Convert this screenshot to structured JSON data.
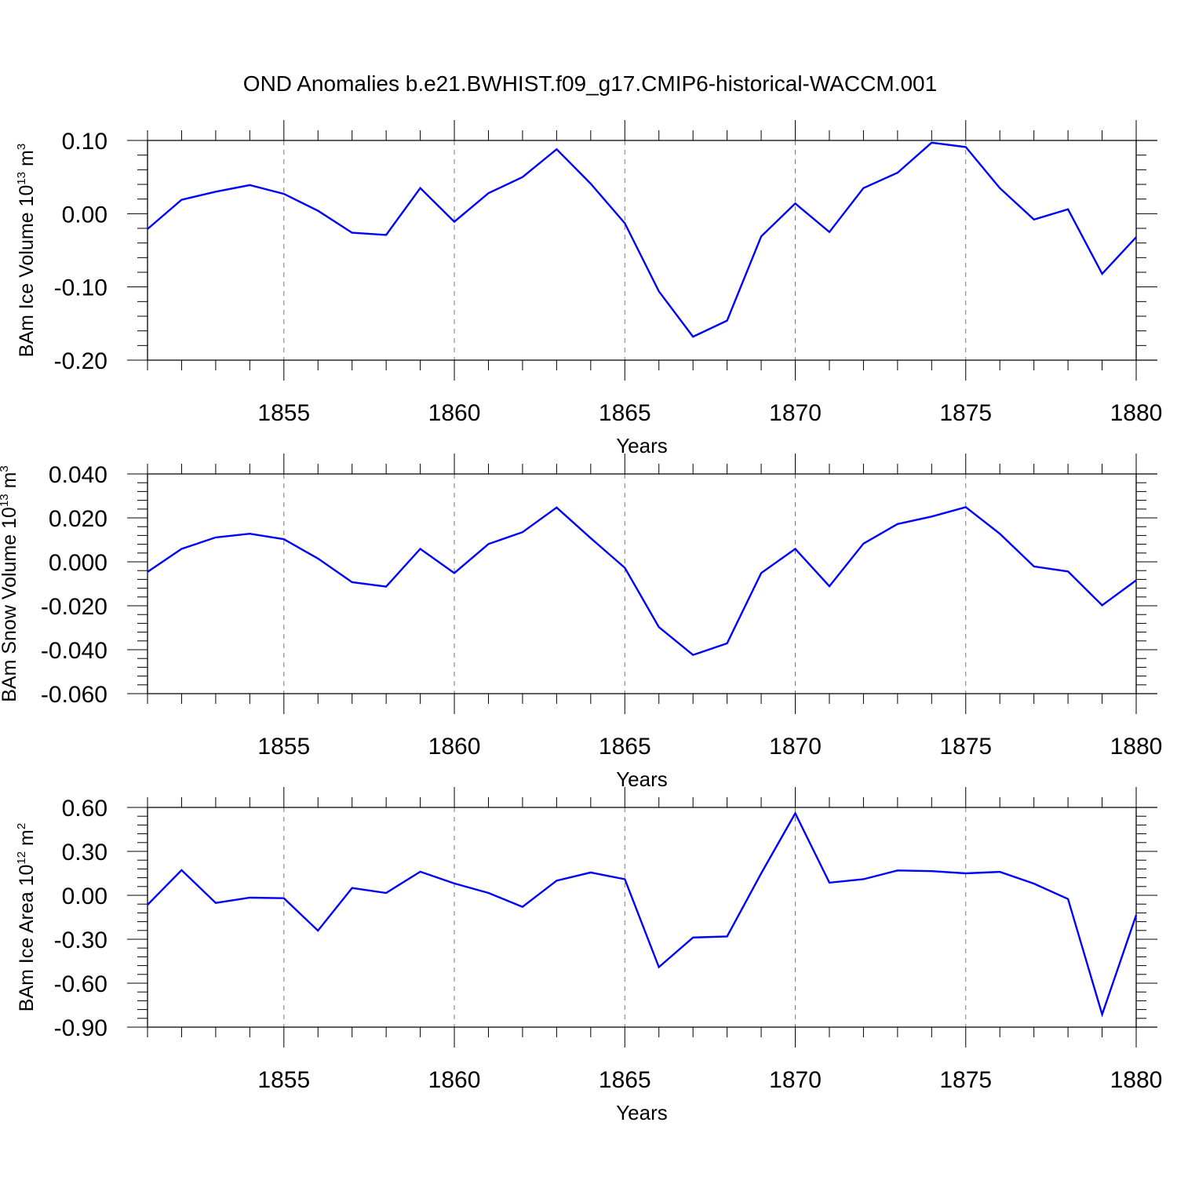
{
  "title": "OND Anomalies b.e21.BWHIST.f09_g17.CMIP6-historical-WACCM.001",
  "chart_data": [
    {
      "type": "line",
      "title": "OND Anomalies b.e21.BWHIST.f09_g17.CMIP6-historical-WACCM.001",
      "xlabel": "Years",
      "ylabel_main": "BAm Ice Volume 10",
      "ylabel_exp": "13",
      "ylabel_unit": " m",
      "ylabel_unit_exp": "3",
      "xlim": [
        1851,
        1880
      ],
      "ylim": [
        -0.2,
        0.1
      ],
      "yticks": [
        -0.2,
        -0.1,
        0.0,
        0.1
      ],
      "ytick_labels": [
        "-0.20",
        "-0.10",
        "0.00",
        "0.10"
      ],
      "xticks": [
        1855,
        1860,
        1865,
        1870,
        1875,
        1880
      ],
      "xtick_labels": [
        "1855",
        "1860",
        "1865",
        "1870",
        "1875",
        "1880"
      ],
      "grid": "vertical dashed at major x ticks",
      "series": [
        {
          "name": "BAm Ice Volume",
          "color": "#0000ff",
          "x": [
            1851,
            1852,
            1853,
            1854,
            1855,
            1856,
            1857,
            1858,
            1859,
            1860,
            1861,
            1862,
            1863,
            1864,
            1865,
            1866,
            1867,
            1868,
            1869,
            1870,
            1871,
            1872,
            1873,
            1874,
            1875,
            1876,
            1877,
            1878,
            1879,
            1880
          ],
          "values": [
            -0.021,
            0.019,
            0.03,
            0.039,
            0.027,
            0.004,
            -0.026,
            -0.029,
            0.035,
            -0.011,
            0.028,
            0.05,
            0.088,
            0.041,
            -0.013,
            -0.106,
            -0.168,
            -0.146,
            -0.031,
            0.014,
            -0.025,
            0.035,
            0.056,
            0.097,
            0.091,
            0.035,
            -0.008,
            0.006,
            -0.082,
            -0.032
          ]
        }
      ]
    },
    {
      "type": "line",
      "xlabel": "Years",
      "ylabel_main": "BAm Snow Volume 10",
      "ylabel_exp": "13",
      "ylabel_unit": " m",
      "ylabel_unit_exp": "3",
      "xlim": [
        1851,
        1880
      ],
      "ylim": [
        -0.06,
        0.04
      ],
      "yticks": [
        -0.06,
        -0.04,
        -0.02,
        0.0,
        0.02,
        0.04
      ],
      "ytick_labels": [
        "-0.060",
        "-0.040",
        "-0.020",
        "0.000",
        "0.020",
        "0.040"
      ],
      "xticks": [
        1855,
        1860,
        1865,
        1870,
        1875,
        1880
      ],
      "xtick_labels": [
        "1855",
        "1860",
        "1865",
        "1870",
        "1875",
        "1880"
      ],
      "grid": "vertical dashed at major x ticks",
      "series": [
        {
          "name": "BAm Snow Volume",
          "color": "#0000ff",
          "x": [
            1851,
            1852,
            1853,
            1854,
            1855,
            1856,
            1857,
            1858,
            1859,
            1860,
            1861,
            1862,
            1863,
            1864,
            1865,
            1866,
            1867,
            1868,
            1869,
            1870,
            1871,
            1872,
            1873,
            1874,
            1875,
            1876,
            1877,
            1878,
            1879,
            1880
          ],
          "values": [
            -0.0046,
            0.0059,
            0.0111,
            0.0128,
            0.0103,
            0.0015,
            -0.0093,
            -0.0113,
            0.0059,
            -0.0051,
            0.0081,
            0.0135,
            0.0247,
            0.0108,
            -0.0027,
            -0.0297,
            -0.0424,
            -0.0371,
            -0.0051,
            0.0059,
            -0.0111,
            0.0083,
            0.0172,
            0.0206,
            0.0249,
            0.0128,
            -0.0021,
            -0.0044,
            -0.0198,
            -0.0084
          ]
        }
      ]
    },
    {
      "type": "line",
      "xlabel": "Years",
      "ylabel_main": "BAm Ice Area 10",
      "ylabel_exp": "12",
      "ylabel_unit": " m",
      "ylabel_unit_exp": "2",
      "xlim": [
        1851,
        1880
      ],
      "ylim": [
        -0.9,
        0.6
      ],
      "yticks": [
        -0.9,
        -0.6,
        -0.3,
        0.0,
        0.3,
        0.6
      ],
      "ytick_labels": [
        "-0.90",
        "-0.60",
        "-0.30",
        "0.00",
        "0.30",
        "0.60"
      ],
      "xticks": [
        1855,
        1860,
        1865,
        1870,
        1875,
        1880
      ],
      "xtick_labels": [
        "1855",
        "1860",
        "1865",
        "1870",
        "1875",
        "1880"
      ],
      "grid": "vertical dashed at major x ticks",
      "series": [
        {
          "name": "BAm Ice Area",
          "color": "#0000ff",
          "x": [
            1851,
            1852,
            1853,
            1854,
            1855,
            1856,
            1857,
            1858,
            1859,
            1860,
            1861,
            1862,
            1863,
            1864,
            1865,
            1866,
            1867,
            1868,
            1869,
            1870,
            1871,
            1872,
            1873,
            1874,
            1875,
            1876,
            1877,
            1878,
            1879,
            1880
          ],
          "values": [
            -0.065,
            0.172,
            -0.052,
            -0.016,
            -0.02,
            -0.241,
            0.05,
            0.016,
            0.161,
            0.081,
            0.016,
            -0.079,
            0.1,
            0.156,
            0.11,
            -0.49,
            -0.288,
            -0.281,
            0.15,
            0.56,
            0.086,
            0.11,
            0.17,
            0.165,
            0.15,
            0.16,
            0.08,
            -0.025,
            -0.813,
            -0.135
          ]
        }
      ]
    }
  ]
}
